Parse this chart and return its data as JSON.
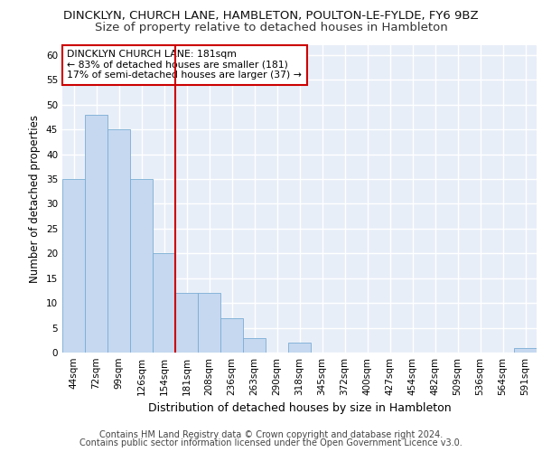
{
  "title": "DINCKLYN, CHURCH LANE, HAMBLETON, POULTON-LE-FYLDE, FY6 9BZ",
  "subtitle": "Size of property relative to detached houses in Hambleton",
  "xlabel": "Distribution of detached houses by size in Hambleton",
  "ylabel": "Number of detached properties",
  "categories": [
    "44sqm",
    "72sqm",
    "99sqm",
    "126sqm",
    "154sqm",
    "181sqm",
    "208sqm",
    "236sqm",
    "263sqm",
    "290sqm",
    "318sqm",
    "345sqm",
    "372sqm",
    "400sqm",
    "427sqm",
    "454sqm",
    "482sqm",
    "509sqm",
    "536sqm",
    "564sqm",
    "591sqm"
  ],
  "values": [
    35,
    48,
    45,
    35,
    20,
    12,
    12,
    7,
    3,
    0,
    2,
    0,
    0,
    0,
    0,
    0,
    0,
    0,
    0,
    0,
    1
  ],
  "bar_color": "#c5d8f0",
  "bar_edge_color": "#7aadd4",
  "highlight_index": 5,
  "highlight_line_color": "#cc0000",
  "annotation_text": "DINCKLYN CHURCH LANE: 181sqm\n← 83% of detached houses are smaller (181)\n17% of semi-detached houses are larger (37) →",
  "annotation_box_color": "#ffffff",
  "annotation_box_edge_color": "#cc0000",
  "ylim": [
    0,
    62
  ],
  "yticks": [
    0,
    5,
    10,
    15,
    20,
    25,
    30,
    35,
    40,
    45,
    50,
    55,
    60
  ],
  "footer1": "Contains HM Land Registry data © Crown copyright and database right 2024.",
  "footer2": "Contains public sector information licensed under the Open Government Licence v3.0.",
  "bg_color": "#e8eef8",
  "grid_color": "#ffffff",
  "title_fontsize": 9.5,
  "subtitle_fontsize": 9.5,
  "xlabel_fontsize": 9,
  "ylabel_fontsize": 8.5,
  "tick_fontsize": 7.5,
  "footer_fontsize": 7.0
}
